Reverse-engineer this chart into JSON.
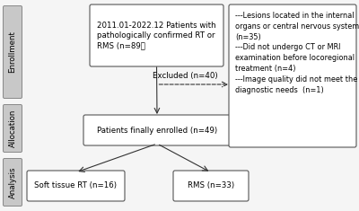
{
  "bg_color": "#f5f5f5",
  "box_face": "#ffffff",
  "box_edge": "#555555",
  "side_bg": "#c8c8c8",
  "side_edge": "#888888",
  "side_labels": [
    "Enrollment",
    "Allocation",
    "Analysis"
  ],
  "arrow_color": "#333333",
  "font_size": 6.2,
  "side_font_size": 6.2,
  "box1_text": "2011.01-2022.12 Patients with\npathologically confirmed RT or\nRMS (n=89）",
  "box2_text": "Patients finally enrolled (n=49)",
  "box3_text": "Soft tissue RT (n=16)",
  "box4_text": "RMS (n=33)",
  "excl_box_text": "---Lesions located in the internal\norgans or central nervous system\n(n=35)\n---Did not undergo CT or MRI\nexamination before locoregional\ntreatment (n=4)\n---Image quality did not meet the\ndiagnostic needs  (n=1)",
  "excl_label": "Excluded (n=40)"
}
